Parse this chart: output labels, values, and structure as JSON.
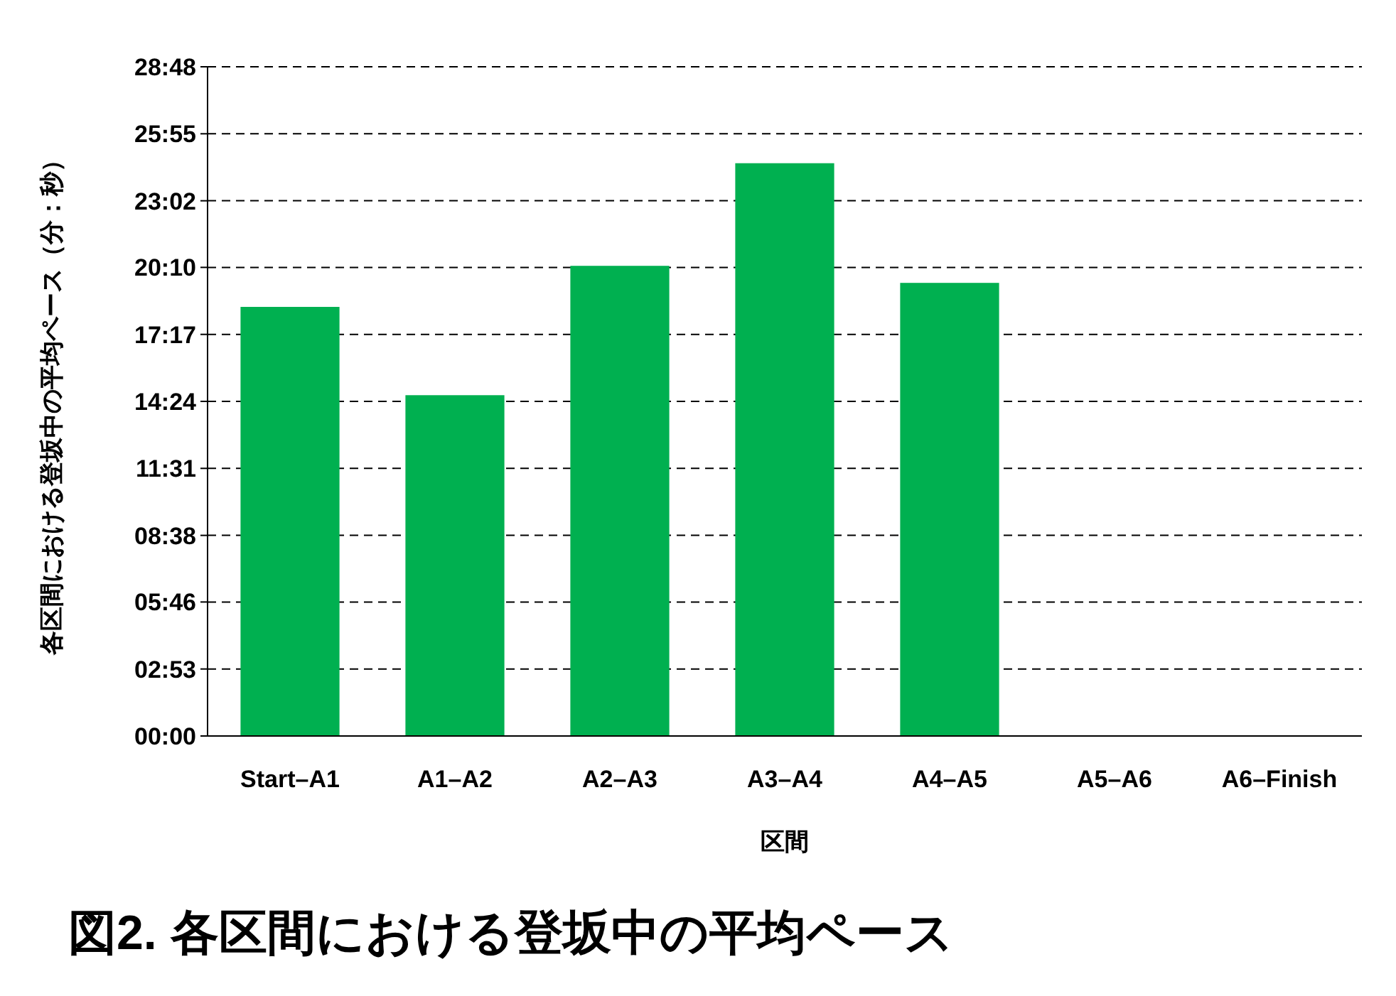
{
  "chart_data": {
    "type": "bar",
    "title": "図2. 各区間における登坂中の平均ペース",
    "xlabel": "区間",
    "ylabel": "各区間における登坂中の平均ペース（分：秒）",
    "categories": [
      "Start–A1",
      "A1–A2",
      "A2–A3",
      "A3–A4",
      "A4–A5",
      "A5–A6",
      "A6–Finish"
    ],
    "values": [
      1108,
      880,
      1214,
      1479,
      1170,
      null,
      null
    ],
    "color": "#00b050",
    "ylim": [
      0,
      1728
    ],
    "yticks": [
      {
        "value": 0,
        "label": "00:00"
      },
      {
        "value": 173,
        "label": "02:53"
      },
      {
        "value": 346,
        "label": "05:46"
      },
      {
        "value": 518,
        "label": "08:38"
      },
      {
        "value": 691,
        "label": "11:31"
      },
      {
        "value": 864,
        "label": "14:24"
      },
      {
        "value": 1037,
        "label": "17:17"
      },
      {
        "value": 1210,
        "label": "20:10"
      },
      {
        "value": 1382,
        "label": "23:02"
      },
      {
        "value": 1555,
        "label": "25:55"
      },
      {
        "value": 1728,
        "label": "28:48"
      }
    ],
    "grid": "y"
  }
}
